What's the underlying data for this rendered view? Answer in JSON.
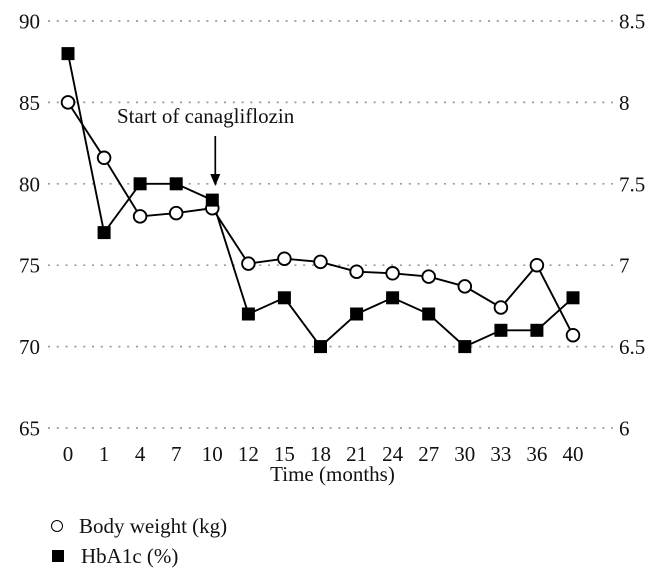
{
  "chart_data": {
    "type": "line",
    "categories": [
      0,
      1,
      4,
      7,
      10,
      12,
      15,
      18,
      21,
      24,
      27,
      30,
      33,
      36,
      40
    ],
    "xlabel": "Time (months)",
    "series": [
      {
        "name": "Body weight (kg)",
        "axis": "left",
        "marker": "open-circle",
        "values": [
          85,
          81.6,
          78,
          78.2,
          78.5,
          75.1,
          75.4,
          75.2,
          74.6,
          74.5,
          74.3,
          73.7,
          72.4,
          75,
          70.7
        ]
      },
      {
        "name": "HbA1c (%)",
        "axis": "right",
        "marker": "filled-square",
        "values": [
          8.3,
          7.2,
          7.5,
          7.5,
          7.4,
          6.7,
          6.8,
          6.5,
          6.7,
          6.8,
          6.7,
          6.5,
          6.6,
          6.6,
          6.8
        ]
      }
    ],
    "left_axis": {
      "ticks": [
        90,
        85,
        80,
        75,
        70,
        65
      ],
      "range": [
        65,
        90
      ]
    },
    "right_axis": {
      "ticks": [
        8.5,
        8,
        7.5,
        7,
        6.5,
        6
      ],
      "range": [
        6,
        8.5
      ]
    },
    "annotation": {
      "text": "Start of canagliflozin",
      "arrow_at_month": 10
    },
    "grid": "dotted-horizontal",
    "legend_position": "bottom-left",
    "colors": {
      "series": "#000000",
      "grid_dots": "#9a9a9a",
      "background": "#ffffff"
    }
  }
}
